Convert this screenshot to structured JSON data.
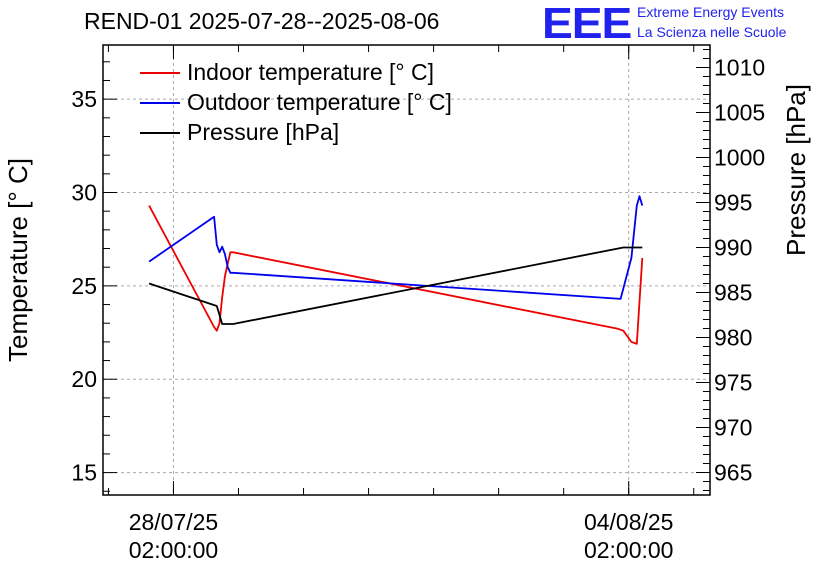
{
  "header": {
    "title": "REND-01 2025-07-28--2025-08-06"
  },
  "logo": {
    "mark": "EEE",
    "line1": "Extreme Energy Events",
    "line2": "La Scienza nelle Scuole",
    "color": "#2222ee"
  },
  "chart_data": {
    "type": "line",
    "title": "REND-01 2025-07-28--2025-08-06",
    "xlabel": "",
    "ylabel": "Temperature [° C]",
    "y2label": "Pressure [hPa]",
    "x_ticks": [
      {
        "value": "2025-07-28 02:00:00",
        "label": "28/07/25\n02:00:00"
      },
      {
        "value": "2025-08-04 02:00:00",
        "label": "04/08/25\n02:00:00"
      }
    ],
    "xlim": [
      "2025-07-27 00:00:00",
      "2025-08-05 08:00:00"
    ],
    "ylim": [
      13.8,
      37.9
    ],
    "y2lim": [
      962.5,
      1012.5
    ],
    "y_ticks": [
      15,
      20,
      25,
      30,
      35
    ],
    "y2_ticks": [
      965,
      970,
      975,
      980,
      985,
      990,
      995,
      1000,
      1005,
      1010
    ],
    "grid": true,
    "legend_position": "top-left",
    "series": [
      {
        "name": "Indoor temperature [° C]",
        "axis": "left",
        "color": "#ee0000",
        "x": [
          "2025-07-27 17:00:00",
          "2025-07-28 17:00:00",
          "2025-07-28 18:00:00",
          "2025-07-28 19:00:00",
          "2025-07-28 20:00:00",
          "2025-07-28 21:00:00",
          "2025-07-28 22:00:00",
          "2025-07-28 23:00:00",
          "2025-07-29 00:00:00",
          "2025-08-03 22:00:00",
          "2025-08-04 00:00:00",
          "2025-08-04 03:00:00",
          "2025-08-04 05:00:00",
          "2025-08-04 07:00:00"
        ],
        "values": [
          29.3,
          22.8,
          22.6,
          23.0,
          24.4,
          25.5,
          26.2,
          26.8,
          26.8,
          22.7,
          22.6,
          22.0,
          21.9,
          26.5
        ]
      },
      {
        "name": "Outdoor temperature [° C]",
        "axis": "left",
        "color": "#0000ee",
        "x": [
          "2025-07-27 17:00:00",
          "2025-07-28 17:00:00",
          "2025-07-28 18:00:00",
          "2025-07-28 19:00:00",
          "2025-07-28 20:00:00",
          "2025-07-28 21:00:00",
          "2025-07-28 22:00:00",
          "2025-07-28 23:00:00",
          "2025-07-29 00:00:00",
          "2025-08-03 23:00:00",
          "2025-08-04 03:00:00",
          "2025-08-04 05:00:00",
          "2025-08-04 06:00:00",
          "2025-08-04 07:00:00"
        ],
        "values": [
          26.3,
          28.7,
          27.2,
          26.8,
          27.1,
          26.7,
          26.0,
          25.7,
          25.7,
          24.3,
          26.5,
          29.3,
          29.8,
          29.3
        ]
      },
      {
        "name": "Pressure [hPa]",
        "axis": "right",
        "color": "#000000",
        "x": [
          "2025-07-27 17:00:00",
          "2025-07-28 18:00:00",
          "2025-07-28 20:00:00",
          "2025-07-29 00:00:00",
          "2025-08-04 00:00:00",
          "2025-08-04 07:00:00"
        ],
        "values": [
          986.0,
          983.5,
          981.5,
          981.5,
          990.0,
          990.0
        ]
      }
    ]
  }
}
